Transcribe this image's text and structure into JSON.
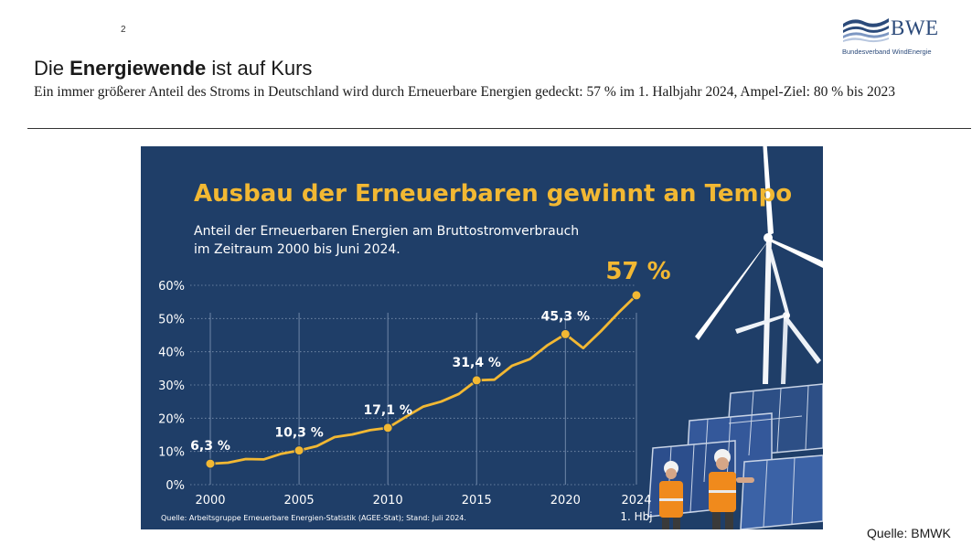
{
  "page": {
    "number": "2"
  },
  "logo": {
    "text": "BWE",
    "subtitle": "Bundesverband WindEnergie"
  },
  "slide": {
    "title_plain_1": "Die ",
    "title_bold": "Energiewende",
    "title_plain_2": " ist auf Kurs",
    "subtitle": "Ein immer größerer Anteil des Stroms in Deutschland wird durch Erneuerbare Energien gedeckt: 57 % im 1. Halbjahr 2024, Ampel-Ziel: 80 % bis 2023",
    "source": "Quelle: BMWK"
  },
  "colors": {
    "panel_bg": "#1f3e68",
    "accent": "#f2b833",
    "grid": "#7f93b0",
    "text_light": "#ffffff"
  },
  "chart_data": {
    "type": "line",
    "title": "Ausbau der Erneuerbaren gewinnt an Tempo",
    "subtitle": "Anteil der Erneuerbaren Energien am Bruttostromverbrauch im Zeitraum 2000 bis Juni 2024.",
    "subtitle_lines": [
      "Anteil der Erneuerbaren Energien am Bruttostromverbrauch",
      "im Zeitraum 2000 bis Juni 2024."
    ],
    "ylim": [
      0,
      60
    ],
    "yticks": [
      0,
      10,
      20,
      30,
      40,
      50,
      60
    ],
    "ytick_labels": [
      "0%",
      "10%",
      "20%",
      "30%",
      "40%",
      "50%",
      "60%"
    ],
    "xticks": [
      2000,
      2005,
      2010,
      2015,
      2020,
      2024
    ],
    "xtick_labels": [
      "2000",
      "2005",
      "2010",
      "2015",
      "2020",
      "2024"
    ],
    "xtick_sublabel": "1. Hbj",
    "grid": "vertical at ticks",
    "series": [
      {
        "x": [
          2000,
          2001,
          2002,
          2003,
          2004,
          2005,
          2006,
          2007,
          2008,
          2009,
          2010,
          2011,
          2012,
          2013,
          2014,
          2015,
          2016,
          2017,
          2018,
          2019,
          2020,
          2021,
          2022,
          2023,
          2024
        ],
        "values": [
          6.3,
          6.6,
          7.7,
          7.6,
          9.3,
          10.3,
          11.6,
          14.3,
          15.1,
          16.4,
          17.1,
          20.4,
          23.5,
          25.0,
          27.3,
          31.4,
          31.6,
          35.8,
          37.8,
          42.0,
          45.3,
          41.1,
          46.2,
          51.8,
          57.0
        ]
      }
    ],
    "highlighted_points": [
      {
        "x": 2000,
        "value": 6.3,
        "label": "6,3 %"
      },
      {
        "x": 2005,
        "value": 10.3,
        "label": "10,3 %"
      },
      {
        "x": 2010,
        "value": 17.1,
        "label": "17,1 %"
      },
      {
        "x": 2015,
        "value": 31.4,
        "label": "31,4 %"
      },
      {
        "x": 2020,
        "value": 45.3,
        "label": "45,3 %"
      },
      {
        "x": 2024,
        "value": 57.0,
        "label": "57 %"
      }
    ],
    "source_note": "Quelle: Arbeitsgruppe Erneuerbare Energien-Statistik (AGEE-Stat); Stand: Juli 2024."
  }
}
